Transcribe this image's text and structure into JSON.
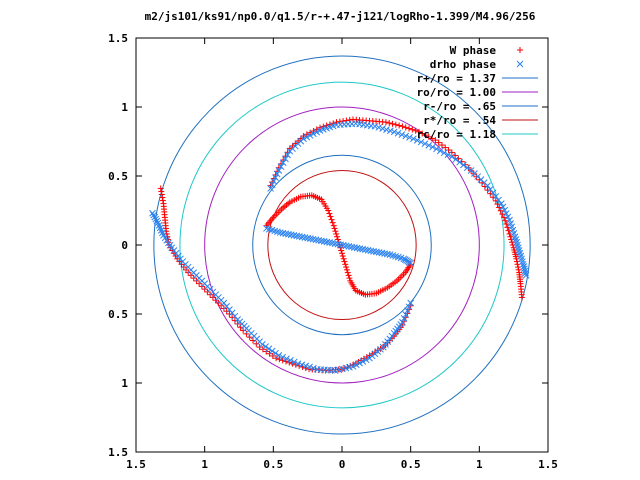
{
  "chart_data": {
    "type": "scatter",
    "title": "m2/js101/ks91/np0.0/q1.5/r-+.47-j121/logRho-1.399/M4.96/256",
    "xlim": [
      -1.5,
      1.5
    ],
    "ylim": [
      -1.5,
      1.5
    ],
    "x_tick_labels": [
      "1.5",
      "1",
      "0.5",
      "0",
      "0.5",
      "1",
      "1.5"
    ],
    "x_tick_values": [
      -1.5,
      -1,
      -0.5,
      0,
      0.5,
      1,
      1.5
    ],
    "y_tick_labels": [
      "1.5",
      "1",
      "0.5",
      "0",
      "0.5",
      "1",
      "1.5"
    ],
    "y_tick_values": [
      1.5,
      1,
      0.5,
      0,
      -0.5,
      -1,
      -1.5
    ],
    "legend_position": "top-right",
    "grid": false,
    "series": [
      {
        "name": "W phase",
        "marker": "plus",
        "color": "#ff0000",
        "segments": [
          [
            [
              -0.55,
              0.14
            ],
            [
              -0.5,
              0.2
            ],
            [
              -0.44,
              0.26
            ],
            [
              -0.38,
              0.31
            ],
            [
              -0.3,
              0.35
            ],
            [
              -0.22,
              0.36
            ],
            [
              -0.15,
              0.33
            ],
            [
              -0.1,
              0.25
            ],
            [
              -0.06,
              0.14
            ],
            [
              -0.03,
              0.04
            ],
            [
              0.0,
              -0.06
            ],
            [
              0.03,
              -0.16
            ],
            [
              0.06,
              -0.26
            ],
            [
              0.1,
              -0.33
            ],
            [
              0.17,
              -0.36
            ],
            [
              0.25,
              -0.35
            ],
            [
              0.33,
              -0.31
            ],
            [
              0.4,
              -0.26
            ],
            [
              0.46,
              -0.2
            ],
            [
              0.5,
              -0.14
            ]
          ],
          [
            [
              -1.32,
              0.41
            ],
            [
              -1.3,
              0.3
            ],
            [
              -1.29,
              0.2
            ],
            [
              -1.28,
              0.1
            ],
            [
              -1.26,
              0.0
            ],
            [
              -1.2,
              -0.1
            ],
            [
              -1.12,
              -0.2
            ],
            [
              -1.02,
              -0.3
            ],
            [
              -0.92,
              -0.4
            ],
            [
              -0.82,
              -0.5
            ],
            [
              -0.72,
              -0.62
            ],
            [
              -0.6,
              -0.74
            ],
            [
              -0.48,
              -0.82
            ],
            [
              -0.36,
              -0.86
            ],
            [
              -0.24,
              -0.9
            ],
            [
              -0.12,
              -0.91
            ],
            [
              0.0,
              -0.9
            ],
            [
              0.1,
              -0.86
            ],
            [
              0.2,
              -0.8
            ],
            [
              0.3,
              -0.74
            ],
            [
              0.38,
              -0.66
            ],
            [
              0.44,
              -0.58
            ],
            [
              0.5,
              -0.44
            ]
          ],
          [
            [
              -0.52,
              0.43
            ],
            [
              -0.46,
              0.56
            ],
            [
              -0.38,
              0.7
            ],
            [
              -0.28,
              0.79
            ],
            [
              -0.16,
              0.85
            ],
            [
              -0.04,
              0.89
            ],
            [
              0.08,
              0.91
            ],
            [
              0.2,
              0.9
            ],
            [
              0.32,
              0.89
            ],
            [
              0.44,
              0.86
            ],
            [
              0.56,
              0.82
            ],
            [
              0.68,
              0.76
            ],
            [
              0.8,
              0.67
            ],
            [
              0.92,
              0.56
            ],
            [
              1.02,
              0.45
            ],
            [
              1.12,
              0.32
            ],
            [
              1.18,
              0.2
            ],
            [
              1.22,
              0.08
            ],
            [
              1.25,
              -0.02
            ],
            [
              1.27,
              -0.1
            ],
            [
              1.29,
              -0.2
            ],
            [
              1.3,
              -0.28
            ],
            [
              1.31,
              -0.38
            ]
          ]
        ]
      },
      {
        "name": "drho phase",
        "marker": "cross",
        "color": "#2a82f0",
        "segments": [
          [
            [
              -0.55,
              0.12
            ],
            [
              -0.45,
              0.09
            ],
            [
              -0.35,
              0.07
            ],
            [
              -0.25,
              0.05
            ],
            [
              -0.15,
              0.03
            ],
            [
              -0.05,
              0.01
            ],
            [
              0.05,
              -0.01
            ],
            [
              0.15,
              -0.03
            ],
            [
              0.25,
              -0.05
            ],
            [
              0.35,
              -0.07
            ],
            [
              0.45,
              -0.1
            ],
            [
              0.5,
              -0.13
            ]
          ],
          [
            [
              -1.38,
              0.23
            ],
            [
              -1.34,
              0.16
            ],
            [
              -1.3,
              0.07
            ],
            [
              -1.24,
              -0.02
            ],
            [
              -1.16,
              -0.12
            ],
            [
              -1.06,
              -0.22
            ],
            [
              -0.96,
              -0.32
            ],
            [
              -0.86,
              -0.42
            ],
            [
              -0.76,
              -0.54
            ],
            [
              -0.68,
              -0.62
            ],
            [
              -0.58,
              -0.72
            ],
            [
              -0.46,
              -0.8
            ],
            [
              -0.32,
              -0.86
            ],
            [
              -0.18,
              -0.9
            ],
            [
              -0.05,
              -0.91
            ],
            [
              0.08,
              -0.88
            ],
            [
              0.2,
              -0.82
            ],
            [
              0.3,
              -0.74
            ],
            [
              0.38,
              -0.64
            ],
            [
              0.44,
              -0.56
            ],
            [
              0.5,
              -0.42
            ]
          ],
          [
            [
              -0.52,
              0.41
            ],
            [
              -0.46,
              0.54
            ],
            [
              -0.38,
              0.68
            ],
            [
              -0.28,
              0.77
            ],
            [
              -0.16,
              0.83
            ],
            [
              -0.04,
              0.87
            ],
            [
              0.1,
              0.88
            ],
            [
              0.24,
              0.86
            ],
            [
              0.38,
              0.82
            ],
            [
              0.52,
              0.77
            ],
            [
              0.66,
              0.71
            ],
            [
              0.8,
              0.64
            ],
            [
              0.94,
              0.54
            ],
            [
              1.06,
              0.43
            ],
            [
              1.16,
              0.3
            ],
            [
              1.22,
              0.18
            ],
            [
              1.26,
              0.06
            ],
            [
              1.29,
              -0.04
            ],
            [
              1.32,
              -0.14
            ],
            [
              1.34,
              -0.22
            ]
          ]
        ]
      }
    ],
    "circles": [
      {
        "name": "r+/ro = 1.37",
        "radius": 1.37,
        "color": "#1f70c0"
      },
      {
        "name": "ro/ro = 1.00",
        "radius": 1.0,
        "color": "#a020c0"
      },
      {
        "name": "r-/ro = .65",
        "radius": 0.65,
        "color": "#1f70c0"
      },
      {
        "name": "r*/ro = .54",
        "radius": 0.54,
        "color": "#c01010"
      },
      {
        "name": "rc/ro = 1.18",
        "radius": 1.18,
        "color": "#20c8c8"
      }
    ]
  }
}
